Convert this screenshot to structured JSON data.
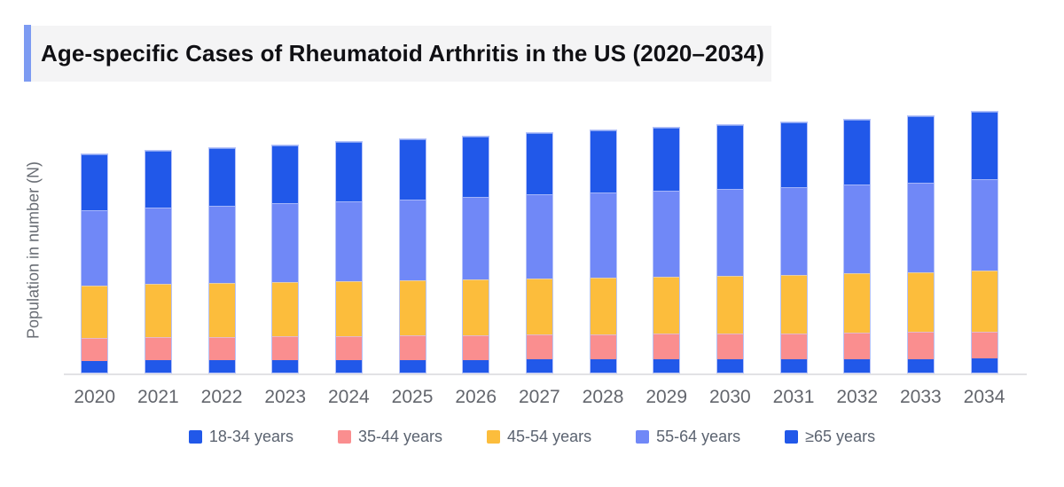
{
  "title": {
    "text": "Age-specific Cases of Rheumatoid Arthritis in the US (2020–2034)"
  },
  "y_axis_label": "Population in number (N)",
  "colors": {
    "accent_bar": "#7d9bf2",
    "title_band": "#f4f4f5",
    "axis_line": "#e2e2e5",
    "axis_text": "#63666d",
    "legend_text": "#5b6370"
  },
  "chart_data": {
    "type": "bar",
    "stacked": true,
    "title": "Age-specific Cases of Rheumatoid Arthritis in the US (2020–2034)",
    "xlabel": "",
    "ylabel": "Population in number (N)",
    "legend_position": "bottom",
    "grid": false,
    "yticks": [],
    "value_units": "relative units (y-axis has no numeric tick labels; values estimated proportional to rendered segment heights in px)",
    "categories": [
      "2020",
      "2021",
      "2022",
      "2023",
      "2024",
      "2025",
      "2026",
      "2027",
      "2028",
      "2029",
      "2030",
      "2031",
      "2032",
      "2033",
      "2034"
    ],
    "series": [
      {
        "name": "18-34 years",
        "color": "#2158e9",
        "values": [
          13.5,
          13.7,
          13.8,
          14.0,
          14.2,
          14.4,
          14.6,
          14.8,
          14.9,
          15.0,
          15.1,
          15.2,
          15.4,
          15.6,
          15.8
        ]
      },
      {
        "name": "35-44 years",
        "color": "#fa8e8f",
        "values": [
          25.7,
          26.3,
          26.6,
          27.0,
          27.3,
          27.6,
          27.9,
          28.3,
          28.7,
          29.0,
          29.3,
          29.6,
          29.9,
          30.3,
          31.0
        ]
      },
      {
        "name": "45-54 years",
        "color": "#fcbd3c",
        "values": [
          60.0,
          60.5,
          61.0,
          61.5,
          62.0,
          62.5,
          63.0,
          63.7,
          64.4,
          65.1,
          65.8,
          66.5,
          67.3,
          68.2,
          69.4
        ]
      },
      {
        "name": "55-64 years",
        "color": "#7088f7",
        "values": [
          85.0,
          86.5,
          88.0,
          89.5,
          91.0,
          92.5,
          94.0,
          95.3,
          96.3,
          97.3,
          98.4,
          99.5,
          100.7,
          101.8,
          103.0
        ]
      },
      {
        "name": "≥65 years",
        "color": "#2158e9",
        "values": [
          64.0,
          64.8,
          65.7,
          66.5,
          67.3,
          68.1,
          68.9,
          69.7,
          70.6,
          71.4,
          72.2,
          73.0,
          73.9,
          74.9,
          76.5
        ]
      }
    ]
  }
}
